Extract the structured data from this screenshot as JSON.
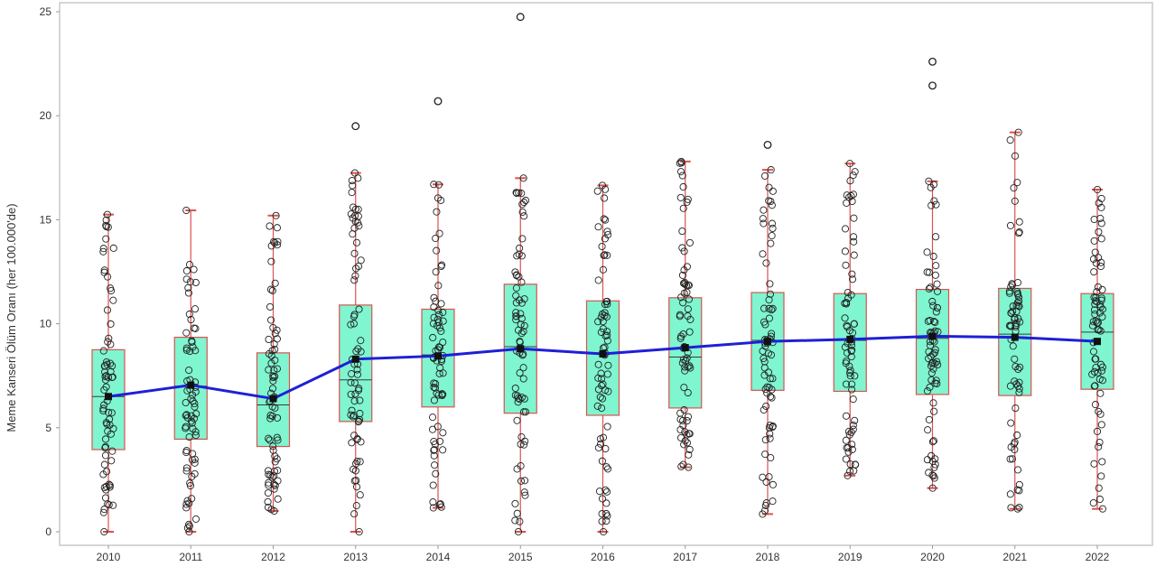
{
  "chart_data": {
    "type": "boxplot",
    "ylabel": "Meme Kanseri Ölüm Oranı (her 100.000'de)",
    "xlabel": "",
    "ylim": [
      0,
      25
    ],
    "yticks": [
      "0",
      "5",
      "10",
      "15",
      "20",
      "25"
    ],
    "categories": [
      "2010",
      "2011",
      "2012",
      "2013",
      "2014",
      "2015",
      "2016",
      "2017",
      "2018",
      "2019",
      "2020",
      "2021",
      "2022"
    ],
    "grid": false,
    "colors": {
      "box_fill": "#7ff5d0",
      "box_edge": "#d9534f",
      "whisker": "#d9534f",
      "mean_line": "#1f1fd6",
      "median": "#3b3b3b",
      "point": "#222222"
    },
    "boxes": [
      {
        "year": "2010",
        "min": 0.0,
        "q1": 3.95,
        "median": 6.5,
        "q3": 8.75,
        "max": 15.25,
        "mean": 6.5,
        "outliers": []
      },
      {
        "year": "2011",
        "min": 0.0,
        "q1": 4.45,
        "median": 7.0,
        "q3": 9.35,
        "max": 15.45,
        "mean": 7.05,
        "outliers": []
      },
      {
        "year": "2012",
        "min": 1.0,
        "q1": 4.1,
        "median": 6.1,
        "q3": 8.6,
        "max": 15.2,
        "mean": 6.4,
        "outliers": []
      },
      {
        "year": "2013",
        "min": 0.0,
        "q1": 5.3,
        "median": 7.3,
        "q3": 10.9,
        "max": 17.25,
        "mean": 8.3,
        "outliers": [
          19.5
        ]
      },
      {
        "year": "2014",
        "min": 1.15,
        "q1": 6.0,
        "median": 8.5,
        "q3": 10.7,
        "max": 16.7,
        "mean": 8.45,
        "outliers": [
          20.7
        ]
      },
      {
        "year": "2015",
        "min": 0.0,
        "q1": 5.7,
        "median": 8.9,
        "q3": 11.9,
        "max": 17.0,
        "mean": 8.8,
        "outliers": [
          24.75
        ]
      },
      {
        "year": "2016",
        "min": 0.0,
        "q1": 5.6,
        "median": 8.6,
        "q3": 11.1,
        "max": 16.65,
        "mean": 8.55,
        "outliers": []
      },
      {
        "year": "2017",
        "min": 3.1,
        "q1": 5.95,
        "median": 8.4,
        "q3": 11.25,
        "max": 17.8,
        "mean": 8.85,
        "outliers": []
      },
      {
        "year": "2018",
        "min": 0.85,
        "q1": 6.8,
        "median": 9.2,
        "q3": 11.5,
        "max": 17.4,
        "mean": 9.15,
        "outliers": [
          18.6
        ]
      },
      {
        "year": "2019",
        "min": 2.7,
        "q1": 6.75,
        "median": 9.2,
        "q3": 11.45,
        "max": 17.7,
        "mean": 9.25,
        "outliers": []
      },
      {
        "year": "2020",
        "min": 2.1,
        "q1": 6.6,
        "median": 9.3,
        "q3": 11.65,
        "max": 16.85,
        "mean": 9.4,
        "outliers": [
          21.45,
          22.6
        ]
      },
      {
        "year": "2021",
        "min": 1.1,
        "q1": 6.55,
        "median": 9.5,
        "q3": 11.7,
        "max": 19.2,
        "mean": 9.35,
        "outliers": []
      },
      {
        "year": "2022",
        "min": 1.1,
        "q1": 6.85,
        "median": 9.6,
        "q3": 11.45,
        "max": 16.45,
        "mean": 9.15,
        "outliers": []
      }
    ]
  }
}
